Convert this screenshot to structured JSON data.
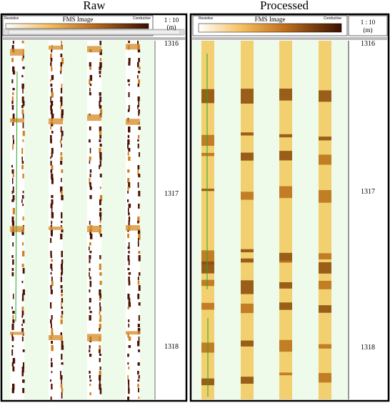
{
  "panels": [
    {
      "title": "Raw",
      "header": {
        "left": "Resistive",
        "center": "FMS Image",
        "right": "Conductive",
        "scale": "1 : 10",
        "unit": "(m)"
      },
      "depths": [
        "1316",
        "1317",
        "1318"
      ]
    },
    {
      "title": "Processed",
      "header": {
        "left": "Resistive",
        "center": "FMS Image",
        "right": "Conductive",
        "scale": "1 : 10",
        "unit": "(m)"
      },
      "depths": [
        "1316",
        "1317",
        "1318"
      ]
    }
  ]
}
